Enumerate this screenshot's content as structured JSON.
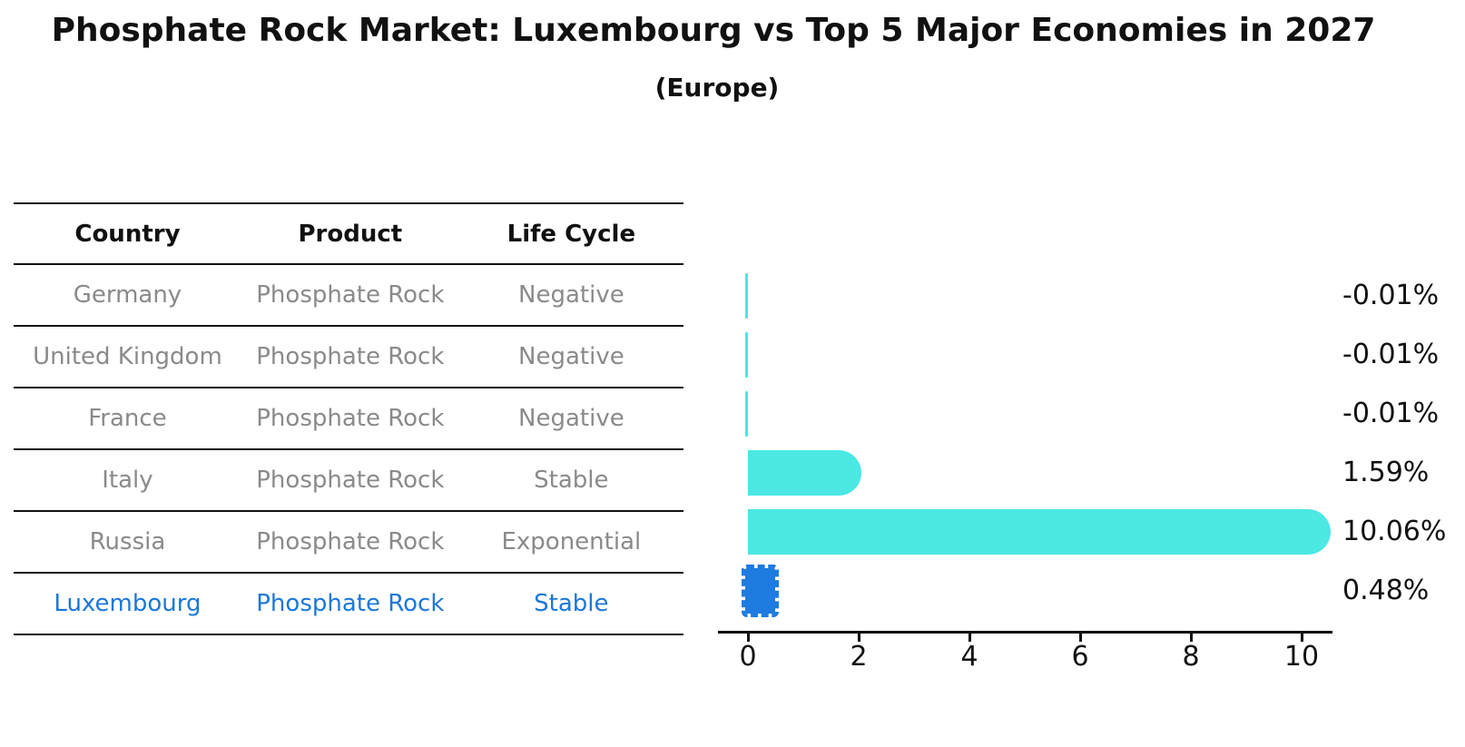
{
  "header": {
    "title": "Phosphate Rock Market: Luxembourg vs Top 5 Major Economies in 2027",
    "subtitle": "(Europe)"
  },
  "table": {
    "headers": [
      "Country",
      "Product",
      "Life Cycle"
    ],
    "rows": [
      {
        "country": "Germany",
        "product": "Phosphate Rock",
        "life_cycle": "Negative",
        "highlight": false
      },
      {
        "country": "United Kingdom",
        "product": "Phosphate Rock",
        "life_cycle": "Negative",
        "highlight": false
      },
      {
        "country": "France",
        "product": "Phosphate Rock",
        "life_cycle": "Negative",
        "highlight": false
      },
      {
        "country": "Italy",
        "product": "Phosphate Rock",
        "life_cycle": "Stable",
        "highlight": false
      },
      {
        "country": "Russia",
        "product": "Phosphate Rock",
        "life_cycle": "Exponential",
        "highlight": false
      },
      {
        "country": "Luxembourg",
        "product": "Phosphate Rock",
        "life_cycle": "Stable",
        "highlight": true
      }
    ]
  },
  "chart_data": {
    "type": "bar",
    "orientation": "horizontal",
    "categories": [
      "Germany",
      "United Kingdom",
      "France",
      "Italy",
      "Russia",
      "Luxembourg"
    ],
    "values": [
      -0.01,
      -0.01,
      -0.01,
      1.59,
      10.06,
      0.48
    ],
    "value_labels": [
      "-0.01%",
      "-0.01%",
      "-0.01%",
      "1.59%",
      "10.06%",
      "0.48%"
    ],
    "highlight_index": 5,
    "xticks": [
      0,
      2,
      4,
      6,
      8,
      10
    ],
    "xlim": [
      -0.54,
      10.55
    ],
    "grid": false,
    "legend": false,
    "bar_color": "#4be8e4",
    "highlight_bar_color": "#1e7be0",
    "highlight_text_color": "#1b78d9",
    "axis_color": "#111111",
    "muted_text_color": "#8a8a8a"
  }
}
